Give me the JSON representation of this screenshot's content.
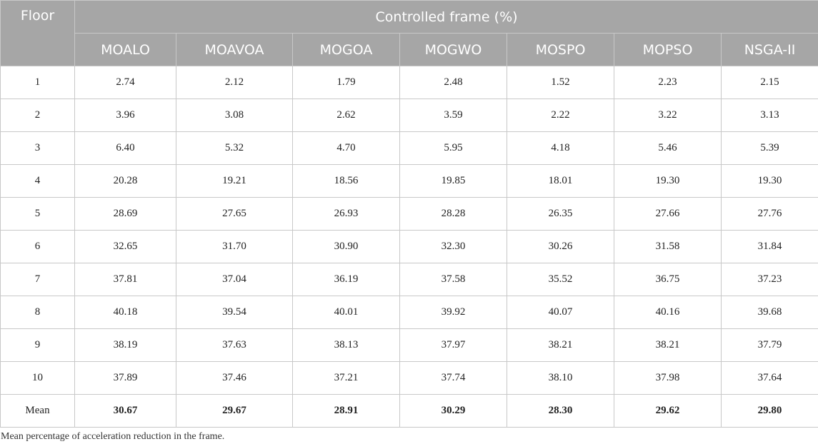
{
  "header": {
    "floor": "Floor",
    "group": "Controlled frame (%)",
    "columns": [
      "MOALO",
      "MOAVOA",
      "MOGOA",
      "MOGWO",
      "MOSPO",
      "MOPSO",
      "NSGA-II"
    ]
  },
  "rows": [
    {
      "label": "1",
      "values": [
        "2.74",
        "2.12",
        "1.79",
        "2.48",
        "1.52",
        "2.23",
        "2.15"
      ]
    },
    {
      "label": "2",
      "values": [
        "3.96",
        "3.08",
        "2.62",
        "3.59",
        "2.22",
        "3.22",
        "3.13"
      ]
    },
    {
      "label": "3",
      "values": [
        "6.40",
        "5.32",
        "4.70",
        "5.95",
        "4.18",
        "5.46",
        "5.39"
      ]
    },
    {
      "label": "4",
      "values": [
        "20.28",
        "19.21",
        "18.56",
        "19.85",
        "18.01",
        "19.30",
        "19.30"
      ]
    },
    {
      "label": "5",
      "values": [
        "28.69",
        "27.65",
        "26.93",
        "28.28",
        "26.35",
        "27.66",
        "27.76"
      ]
    },
    {
      "label": "6",
      "values": [
        "32.65",
        "31.70",
        "30.90",
        "32.30",
        "30.26",
        "31.58",
        "31.84"
      ]
    },
    {
      "label": "7",
      "values": [
        "37.81",
        "37.04",
        "36.19",
        "37.58",
        "35.52",
        "36.75",
        "37.23"
      ]
    },
    {
      "label": "8",
      "values": [
        "40.18",
        "39.54",
        "40.01",
        "39.92",
        "40.07",
        "40.16",
        "39.68"
      ]
    },
    {
      "label": "9",
      "values": [
        "38.19",
        "37.63",
        "38.13",
        "37.97",
        "38.21",
        "38.21",
        "37.79"
      ]
    },
    {
      "label": "10",
      "values": [
        "37.89",
        "37.46",
        "37.21",
        "37.74",
        "38.10",
        "37.98",
        "37.64"
      ]
    },
    {
      "label": "Mean",
      "values": [
        "30.67",
        "29.67",
        "28.91",
        "30.29",
        "28.30",
        "29.62",
        "29.80"
      ]
    }
  ],
  "footnote": "Mean percentage of acceleration reduction in the frame."
}
